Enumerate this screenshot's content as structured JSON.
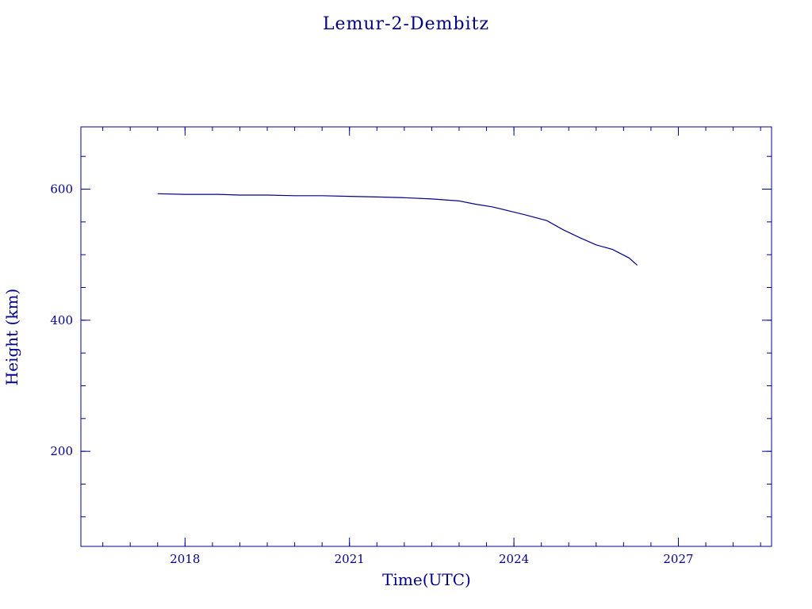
{
  "chart_data": {
    "type": "line",
    "title": "Lemur-2-Dembitz",
    "xlabel": "Time(UTC)",
    "ylabel": "Height (km)",
    "xlim": [
      2016.1,
      2028.7
    ],
    "ylim": [
      55,
      695
    ],
    "x_ticks": [
      2018,
      2021,
      2024,
      2027
    ],
    "y_ticks": [
      200,
      400,
      600
    ],
    "x_tick_labels": [
      "2018",
      "2021",
      "2024",
      "2027"
    ],
    "y_tick_labels": [
      "200",
      "400",
      "600"
    ],
    "x_minor_step": 0.5,
    "y_minor_step": 50,
    "grid": false,
    "color": "#00008b",
    "series": [
      {
        "x": [
          2017.5,
          2018.0,
          2018.6,
          2019.0,
          2019.5,
          2020.0,
          2020.5,
          2021.0,
          2021.5,
          2022.0,
          2022.5,
          2023.0,
          2023.3,
          2023.6,
          2023.9,
          2024.2,
          2024.6,
          2024.9,
          2025.2,
          2025.5,
          2025.8,
          2026.1,
          2026.25
        ],
        "y": [
          593,
          592,
          592,
          591,
          591,
          590,
          590,
          589,
          588,
          587,
          585,
          582,
          577,
          573,
          567,
          561,
          552,
          538,
          526,
          515,
          508,
          495,
          484
        ]
      }
    ]
  }
}
